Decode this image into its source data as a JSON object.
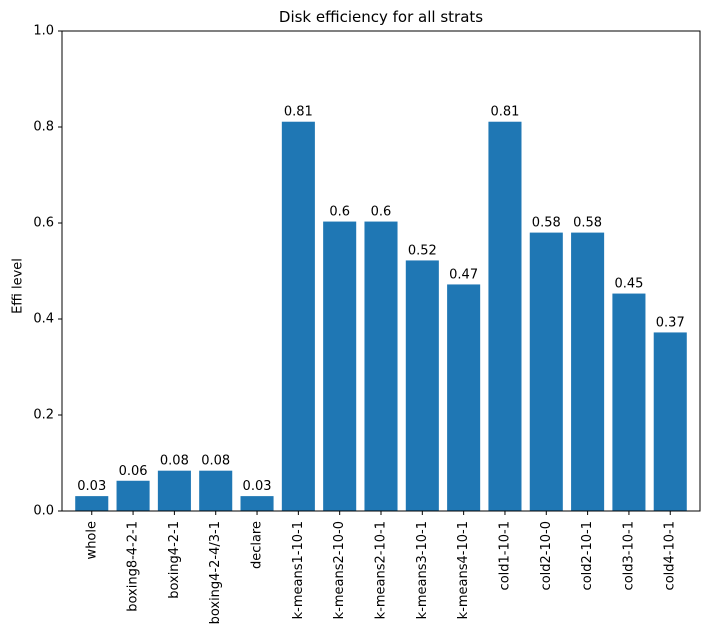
{
  "chart_data": {
    "type": "bar",
    "title": "Disk efficiency for all strats",
    "xlabel": "",
    "ylabel": "Effi level",
    "ylim": [
      0,
      1.0
    ],
    "yticks": [
      "0.0",
      "0.2",
      "0.4",
      "0.6",
      "0.8",
      "1.0"
    ],
    "categories": [
      "whole",
      "boxing8-4-2-1",
      "boxing4-2-1",
      "boxing4-2-4/3-1",
      "declare",
      "k-means1-10-1",
      "k-means2-10-0",
      "k-means2-10-1",
      "k-means3-10-1",
      "k-means4-10-1",
      "cold1-10-1",
      "cold2-10-0",
      "cold2-10-1",
      "cold3-10-1",
      "cold4-10-1"
    ],
    "values": [
      0.03,
      0.06,
      0.08,
      0.08,
      0.03,
      0.81,
      0.6,
      0.6,
      0.52,
      0.47,
      0.81,
      0.58,
      0.58,
      0.45,
      0.37
    ],
    "plot_values": [
      0.031,
      0.063,
      0.084,
      0.084,
      0.031,
      0.811,
      0.603,
      0.603,
      0.522,
      0.472,
      0.811,
      0.58,
      0.58,
      0.453,
      0.372
    ],
    "bar_color": "#1f77b4",
    "grid": false,
    "legend": "none"
  }
}
